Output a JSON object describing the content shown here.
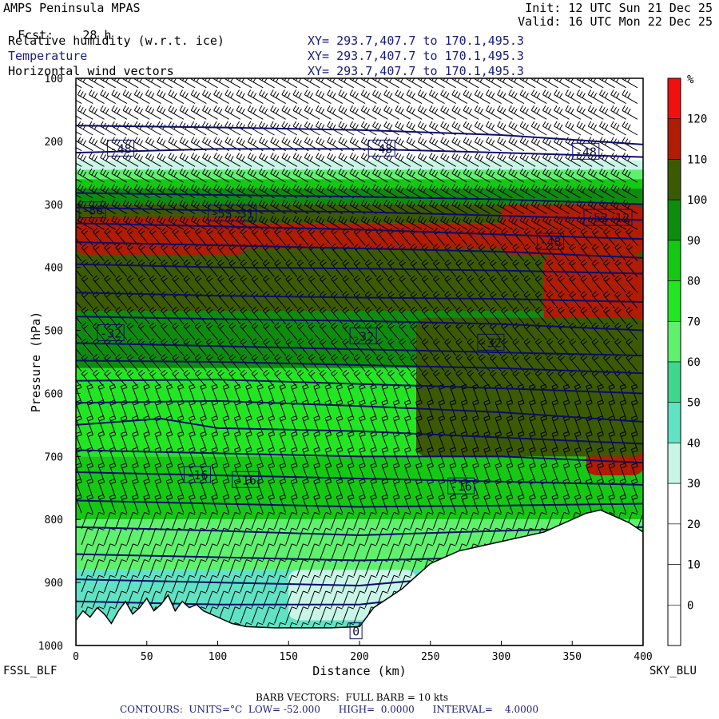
{
  "header": {
    "model": "AMPS Peninsula MPAS",
    "forecast_label": "Fcst:",
    "forecast_value": "28 h",
    "init": "Init: 12 UTC Sun 21 Dec 25",
    "valid": "Valid: 16 UTC Mon 22 Dec 25",
    "fields": [
      {
        "name": "Relative humidity (w.r.t. ice)",
        "xy": "XY= 293.7,407.7 to 170.1,495.3"
      },
      {
        "name": "Temperature",
        "xy": "XY= 293.7,407.7 to 170.1,495.3"
      },
      {
        "name": "Horizontal wind vectors",
        "xy": "XY= 293.7,407.7 to 170.1,495.3"
      }
    ]
  },
  "footer": {
    "left_station": "FSSL_BLF",
    "right_station": "SKY_BLU",
    "barb_note": "BARB VECTORS:  FULL BARB = 10 kts",
    "contour_note": "CONTOURS:  UNITS=°C  LOW= -52.000      HIGH=  0.0000      INTERVAL=    4.0000"
  },
  "colors": {
    "contour": "#0c0c6e",
    "terrain": "#ffffff"
  },
  "chart_data": {
    "type": "heatmap",
    "xlabel": "Distance (km)",
    "ylabel": "Pressure (hPa)",
    "xlim": [
      0,
      400
    ],
    "ylim": [
      1000,
      100
    ],
    "x_ticks": [
      0,
      50,
      100,
      150,
      200,
      250,
      300,
      350,
      400
    ],
    "y_ticks": [
      100,
      200,
      300,
      400,
      500,
      600,
      700,
      800,
      900,
      1000
    ],
    "colorbar": {
      "unit": "%",
      "levels": [
        0,
        10,
        20,
        30,
        40,
        50,
        60,
        70,
        80,
        90,
        100,
        110,
        120
      ],
      "colors": [
        "#ffffff",
        "#ffffff",
        "#ffffff",
        "#c8f5e6",
        "#60e2c4",
        "#3fd78d",
        "#5ff06e",
        "#22e622",
        "#14c814",
        "#0e8c0e",
        "#3c5a04",
        "#b01c04",
        "#f01010"
      ]
    },
    "rh_layers": [
      {
        "p_top": 100,
        "p_bottom": 230,
        "rh": 10
      },
      {
        "p_top": 230,
        "p_bottom": 245,
        "rh": 35
      },
      {
        "p_top": 245,
        "p_bottom": 260,
        "rh": 65
      },
      {
        "p_top": 260,
        "p_bottom": 275,
        "rh": 85
      },
      {
        "p_top": 275,
        "p_bottom": 300,
        "rh": 95
      },
      {
        "p_top": 300,
        "p_bottom": 330,
        "rh": 105
      },
      {
        "p_top": 330,
        "p_bottom": 370,
        "rh": 115
      },
      {
        "p_top": 370,
        "p_bottom": 470,
        "rh": 105
      },
      {
        "p_top": 470,
        "p_bottom": 560,
        "rh": 95
      },
      {
        "p_top": 560,
        "p_bottom": 700,
        "rh": 75
      },
      {
        "p_top": 700,
        "p_bottom": 800,
        "rh": 85
      },
      {
        "p_top": 800,
        "p_bottom": 880,
        "rh": 65
      },
      {
        "p_top": 880,
        "p_bottom": 1000,
        "rh": 45
      }
    ],
    "rh_patches": [
      {
        "x": [
          0,
          120
        ],
        "p": [
          320,
          380
        ],
        "rh": 115
      },
      {
        "x": [
          140,
          230
        ],
        "p": [
          330,
          370
        ],
        "rh": 115
      },
      {
        "x": [
          300,
          400
        ],
        "p": [
          300,
          380
        ],
        "rh": 115
      },
      {
        "x": [
          330,
          400
        ],
        "p": [
          380,
          490
        ],
        "rh": 115
      },
      {
        "x": [
          250,
          320
        ],
        "p": [
          530,
          700
        ],
        "rh": 115
      },
      {
        "x": [
          360,
          400
        ],
        "p": [
          670,
          730
        ],
        "rh": 115
      },
      {
        "x": [
          240,
          400
        ],
        "p": [
          480,
          700
        ],
        "rh": 105
      },
      {
        "x": [
          0,
          240
        ],
        "p": [
          590,
          680
        ],
        "rh": 75
      },
      {
        "x": [
          150,
          240
        ],
        "p": [
          880,
          960
        ],
        "rh": 35
      }
    ],
    "terrain": {
      "x": [
        0,
        5,
        10,
        15,
        20,
        25,
        30,
        35,
        40,
        45,
        50,
        55,
        60,
        65,
        70,
        75,
        80,
        85,
        90,
        95,
        100,
        110,
        120,
        140,
        160,
        180,
        200,
        210,
        220,
        230,
        240,
        250,
        260,
        270,
        280,
        290,
        300,
        310,
        320,
        330,
        340,
        350,
        360,
        370,
        380,
        390,
        400
      ],
      "p": [
        960,
        945,
        955,
        940,
        950,
        965,
        945,
        930,
        950,
        940,
        925,
        945,
        935,
        920,
        945,
        930,
        940,
        935,
        945,
        950,
        955,
        965,
        970,
        972,
        972,
        972,
        970,
        940,
        925,
        910,
        890,
        870,
        860,
        850,
        845,
        840,
        835,
        830,
        825,
        820,
        810,
        800,
        790,
        785,
        795,
        805,
        820
      ]
    },
    "temperature_contours": [
      {
        "value": -52,
        "x": [
          0,
          100,
          200,
          300,
          400
        ],
        "p": [
          175,
          178,
          182,
          190,
          205
        ]
      },
      {
        "value": -48,
        "x": [
          0,
          100,
          200,
          300,
          400
        ],
        "p": [
          218,
          212,
          212,
          218,
          225
        ]
      },
      {
        "value": -52,
        "x": [
          0,
          100,
          200,
          300,
          400
        ],
        "p": [
          282,
          285,
          288,
          292,
          300
        ]
      },
      {
        "value": -52,
        "x": [
          0,
          100,
          200,
          300,
          400
        ],
        "p": [
          305,
          310,
          312,
          318,
          325
        ]
      },
      {
        "value": -48,
        "x": [
          0,
          100,
          200,
          300,
          400
        ],
        "p": [
          330,
          335,
          340,
          348,
          355
        ]
      },
      {
        "value": -44,
        "x": [
          0,
          100,
          200,
          300,
          400
        ],
        "p": [
          360,
          365,
          370,
          375,
          385
        ]
      },
      {
        "value": -40,
        "x": [
          0,
          100,
          200,
          300,
          400
        ],
        "p": [
          395,
          400,
          402,
          405,
          410
        ]
      },
      {
        "value": -36,
        "x": [
          0,
          100,
          200,
          300,
          400
        ],
        "p": [
          440,
          445,
          448,
          450,
          455
        ]
      },
      {
        "value": -32,
        "x": [
          0,
          100,
          200,
          300,
          400
        ],
        "p": [
          478,
          482,
          485,
          490,
          500
        ]
      },
      {
        "value": -28,
        "x": [
          0,
          100,
          200,
          300,
          400
        ],
        "p": [
          520,
          525,
          530,
          535,
          540
        ]
      },
      {
        "value": -28,
        "x": [
          0,
          100,
          200,
          300,
          400
        ],
        "p": [
          548,
          550,
          555,
          560,
          568
        ]
      },
      {
        "value": -24,
        "x": [
          0,
          100,
          200,
          300,
          400
        ],
        "p": [
          580,
          578,
          585,
          592,
          600
        ]
      },
      {
        "value": -20,
        "x": [
          0,
          100,
          200,
          300,
          400
        ],
        "p": [
          615,
          612,
          620,
          630,
          645
        ]
      },
      {
        "value": -20,
        "x": [
          0,
          60,
          100,
          200,
          300,
          400
        ],
        "p": [
          650,
          640,
          655,
          660,
          670,
          680
        ]
      },
      {
        "value": -16,
        "x": [
          0,
          100,
          200,
          300,
          400
        ],
        "p": [
          690,
          695,
          700,
          700,
          710
        ]
      },
      {
        "value": -16,
        "x": [
          0,
          100,
          200,
          300,
          400
        ],
        "p": [
          725,
          730,
          735,
          740,
          745
        ]
      },
      {
        "value": -12,
        "x": [
          0,
          100,
          200,
          300,
          400
        ],
        "p": [
          770,
          775,
          780,
          778,
          775
        ]
      },
      {
        "value": -8,
        "x": [
          0,
          100,
          200,
          300,
          400
        ],
        "p": [
          812,
          818,
          825,
          818,
          812
        ]
      },
      {
        "value": -4,
        "x": [
          0,
          100,
          200,
          300,
          400
        ],
        "p": [
          855,
          860,
          865,
          860,
          850
        ]
      },
      {
        "value": -4,
        "x": [
          0,
          100,
          200,
          250
        ],
        "p": [
          895,
          900,
          905,
          895
        ]
      },
      {
        "value": 0,
        "x": [
          0,
          100,
          200,
          240
        ],
        "p": [
          930,
          935,
          935,
          925
        ]
      }
    ],
    "contour_labels": [
      {
        "text": "-48",
        "x": 24,
        "p": 212
      },
      {
        "text": "-48",
        "x": 208,
        "p": 212
      },
      {
        "text": "-48",
        "x": 352,
        "p": 217
      },
      {
        "text": "-53.31",
        "x": 95,
        "p": 315
      },
      {
        "text": "-53.12",
        "x": 360,
        "p": 322
      },
      {
        "text": "-86",
        "x": 4,
        "p": 310
      },
      {
        "text": "-48",
        "x": 327,
        "p": 360
      },
      {
        "text": "-32",
        "x": 17,
        "p": 505
      },
      {
        "text": "-32",
        "x": 195,
        "p": 510
      },
      {
        "text": "-32",
        "x": 285,
        "p": 520
      },
      {
        "text": "-16",
        "x": 78,
        "p": 730
      },
      {
        "text": "-16",
        "x": 112,
        "p": 738
      },
      {
        "text": "-16",
        "x": 264,
        "p": 748
      },
      {
        "text": "0",
        "x": 195,
        "p": 978
      }
    ],
    "wind_barbs": {
      "x_step_km": 8,
      "p_step_hpa": 25,
      "levels": [
        {
          "p_top": 100,
          "p_bottom": 350,
          "speed_kts": 25,
          "dir_deg": 300
        },
        {
          "p_top": 350,
          "p_bottom": 600,
          "speed_kts": 20,
          "dir_deg": 320
        },
        {
          "p_top": 600,
          "p_bottom": 800,
          "speed_kts": 15,
          "dir_deg": 340
        },
        {
          "p_top": 800,
          "p_bottom": 1000,
          "speed_kts": 10,
          "dir_deg": 20
        }
      ]
    }
  }
}
